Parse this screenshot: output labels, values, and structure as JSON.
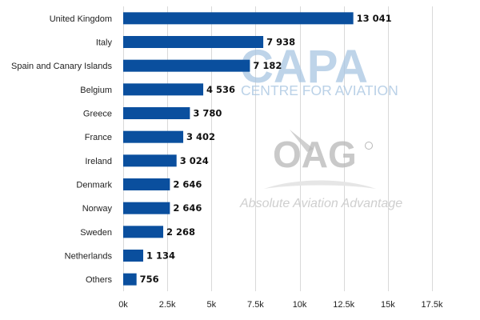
{
  "chart_data": {
    "type": "bar",
    "orientation": "horizontal",
    "categories": [
      "United Kingdom",
      "Italy",
      "Spain and Canary Islands",
      "Belgium",
      "Greece",
      "France",
      "Ireland",
      "Denmark",
      "Norway",
      "Sweden",
      "Netherlands",
      "Others"
    ],
    "values": [
      13041,
      7938,
      7182,
      4536,
      3780,
      3402,
      3024,
      2646,
      2646,
      2268,
      1134,
      756
    ],
    "value_labels": [
      "13 041",
      "7 938",
      "7 182",
      "4 536",
      "3 780",
      "3 402",
      "3 024",
      "2 646",
      "2 646",
      "2 268",
      "1 134",
      "756"
    ],
    "xlim": [
      0,
      17500
    ],
    "x_ticks": [
      0,
      2500,
      5000,
      7500,
      10000,
      12500,
      15000,
      17500
    ],
    "x_tick_labels": [
      "0k",
      "2.5k",
      "5k",
      "7.5k",
      "10k",
      "12.5k",
      "15k",
      "17.5k"
    ],
    "bar_color": "#0a4f9e",
    "grid": true,
    "title": "",
    "xlabel": "",
    "ylabel": ""
  },
  "watermarks": {
    "capa_logo": "CAPA",
    "capa_sub": "CENTRE FOR AVIATION",
    "oag_logo": "OAG",
    "oag_tagline": "Absolute Aviation Advantage"
  }
}
